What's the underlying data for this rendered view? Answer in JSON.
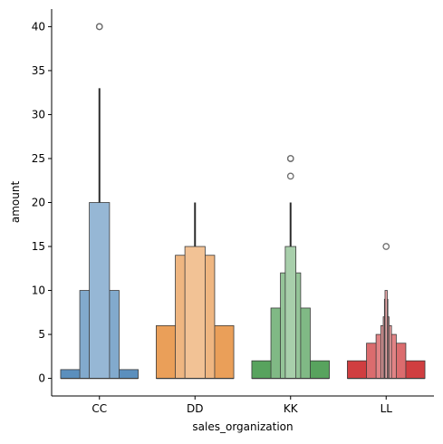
{
  "chart_data": {
    "type": "boxen",
    "title": "",
    "xlabel": "sales_organization",
    "ylabel": "amount",
    "categories": [
      "CC",
      "DD",
      "KK",
      "LL"
    ],
    "ylim": [
      -2,
      42
    ],
    "y_ticks": [
      0,
      5,
      10,
      15,
      20,
      25,
      30,
      35,
      40
    ],
    "grid": false,
    "legend": "none",
    "series": [
      {
        "category": "CC",
        "color": "#5b8fbd",
        "median": 0,
        "boxes": [
          [
            0,
            1
          ],
          [
            0,
            10
          ],
          [
            0,
            20
          ],
          [
            0,
            33
          ]
        ],
        "outliers": [
          40,
          40
        ]
      },
      {
        "category": "DD",
        "color": "#ea9f59",
        "median": 0,
        "boxes": [
          [
            0,
            6
          ],
          [
            0,
            14
          ],
          [
            0,
            15
          ],
          [
            0,
            20
          ]
        ],
        "outliers": []
      },
      {
        "category": "KK",
        "color": "#58a35e",
        "median": 0,
        "boxes": [
          [
            0,
            2
          ],
          [
            0,
            8
          ],
          [
            0,
            12
          ],
          [
            0,
            15
          ],
          [
            0,
            20
          ]
        ],
        "outliers": [
          25,
          25,
          23
        ]
      },
      {
        "category": "LL",
        "color": "#d03e40",
        "median": 0,
        "boxes": [
          [
            0,
            2
          ],
          [
            0,
            4
          ],
          [
            0,
            5
          ],
          [
            0,
            6
          ],
          [
            0,
            7
          ],
          [
            0,
            9
          ],
          [
            0,
            10
          ]
        ],
        "outliers": [
          15
        ]
      }
    ]
  }
}
